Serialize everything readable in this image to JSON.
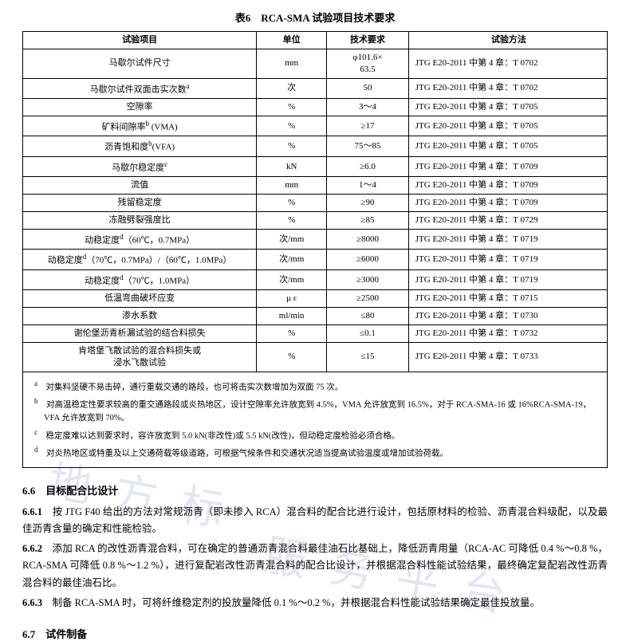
{
  "title": "表6　RCA-SMA 试验项目技术要求",
  "columns": [
    "试验项目",
    "单位",
    "技术要求",
    "试验方法"
  ],
  "rows": [
    {
      "item": "马歇尔试件尺寸",
      "unit": "mm",
      "req": "φ101.6×\n63.5",
      "method": "JTG E20-2011 中第 4 章：T 0702"
    },
    {
      "item": "马歇尔试件双面击实次数",
      "sup": "a",
      "unit": "次",
      "req": "50",
      "method": "JTG E20-2011 中第 4 章：T 0702"
    },
    {
      "item": "空隙率",
      "unit": "%",
      "req": "3～4",
      "method": "JTG E20-2011 中第 4 章：T 0705"
    },
    {
      "item": "矿料间隙率",
      "sup": "b",
      "post": " (VMA)",
      "unit": "%",
      "req": "≥17",
      "method": "JTG E20-2011 中第 4 章：T 0705"
    },
    {
      "item": "沥青饱和度",
      "sup": "b",
      "post": "(VFA)",
      "unit": "%",
      "req": "75～85",
      "method": "JTG E20-2011 中第 4 章：T 0705"
    },
    {
      "item": "马歇尔稳定度",
      "sup": "c",
      "unit": "kN",
      "req": "≥6.0",
      "method": "JTG E20-2011 中第 4 章：T 0709"
    },
    {
      "item": "流值",
      "unit": "mm",
      "req": "1～4",
      "method": "JTG E20-2011 中第 4 章：T 0709"
    },
    {
      "item": "残留稳定度",
      "unit": "%",
      "req": "≥90",
      "method": "JTG E20-2011 中第 4 章：T 0709"
    },
    {
      "item": "冻融劈裂强度比",
      "unit": "%",
      "req": "≥85",
      "method": "JTG E20-2011 中第 4 章：T 0729"
    },
    {
      "item": "动稳定度",
      "sup": "d",
      "post": "（60℃，0.7MPa）",
      "unit": "次/mm",
      "req": "≥8000",
      "method": "JTG E20-2011 中第 4 章：T 0719"
    },
    {
      "item": "动稳定度",
      "sup": "d",
      "post": "（70℃，0.7MPa）/（60℃，1.0MPa）",
      "unit": "次/mm",
      "req": "≥6000",
      "method": "JTG E20-2011 中第 4 章：T 0719"
    },
    {
      "item": "动稳定度",
      "sup": "d",
      "post": "（70℃，1.0MPa）",
      "unit": "次/mm",
      "req": "≥3000",
      "method": "JTG E20-2011 中第 4 章：T 0719"
    },
    {
      "item": "低温弯曲破坏应变",
      "unit": "μ ε",
      "req": "≥2500",
      "method": "JTG E20-2011 中第 4 章：T 0715"
    },
    {
      "item": "渗水系数",
      "unit": "ml/min",
      "req": "≤80",
      "method": "JTG E20-2011 中第 4 章：T 0730"
    },
    {
      "item": "谢伦堡沥青析漏试验的结合料损失",
      "unit": "%",
      "req": "≤0.1",
      "method": "JTG E20-2011 中第 4 章：T 0732"
    },
    {
      "item": "肯塔堡飞散试验的混合料损失或\n浸水飞散试验",
      "unit": "%",
      "req": "≤15",
      "method": "JTG E20-2011 中第 4 章：T 0733"
    }
  ],
  "footnotes": [
    {
      "mark": "a",
      "text": "对集料坚硬不易击碎，通行重载交通的路段，也可将击实次数增加为双面 75 次。"
    },
    {
      "mark": "b",
      "text": "对高温稳定性要求较高的重交通路段或炎热地区，设计空隙率允许放宽到 4.5%，VMA 允许放宽到 16.5%，对于 RCA-SMA-16 或 16%RCA-SMA-19，VFA 允许放宽到 70%。"
    },
    {
      "mark": "c",
      "text": "稳定度难以达到要求时，容许放宽到 5.0 kN(非改性)或 5.5 kN(改性)，但动稳定度检验必须合格。"
    },
    {
      "mark": "d",
      "text": "对炎热地区或特重及以上交通荷载等级道路，可根据气候条件和交通状况适当提高试验温度或增加试验荷载。"
    }
  ],
  "section66": {
    "heading": "6.6　目标配合比设计",
    "p1_label": "6.6.1",
    "p1": "按 JTG F40 给出的方法对常规沥青（即未掺入 RCA）混合料的配合比进行设计，包括原材料的检验、沥青混合料级配，以及最佳沥青含量的确定和性能检验。",
    "p2_label": "6.6.2",
    "p2": "添加 RCA 的改性沥青混合料，可在确定的普通沥青混合料最佳油石比基础上，降低沥青用量（RCA-AC 可降低 0.4 %～0.8 %，RCA-SMA 可降低 0.8 %～1.2 %），进行复配岩改性沥青混合料的配合比设计，并根据混合料性能试验结果，最终确定复配岩改性沥青混合料的最佳油石比。",
    "p3_label": "6.6.3",
    "p3": "制备 RCA-SMA 时，可将纤维稳定剂的投放量降低 0.1 %～0.2 %，并根据混合料性能试验结果确定最佳投放量。"
  },
  "section67": {
    "heading": "6.7　试件制备"
  },
  "watermark1": "地方标",
  "watermark2": "服务平台"
}
